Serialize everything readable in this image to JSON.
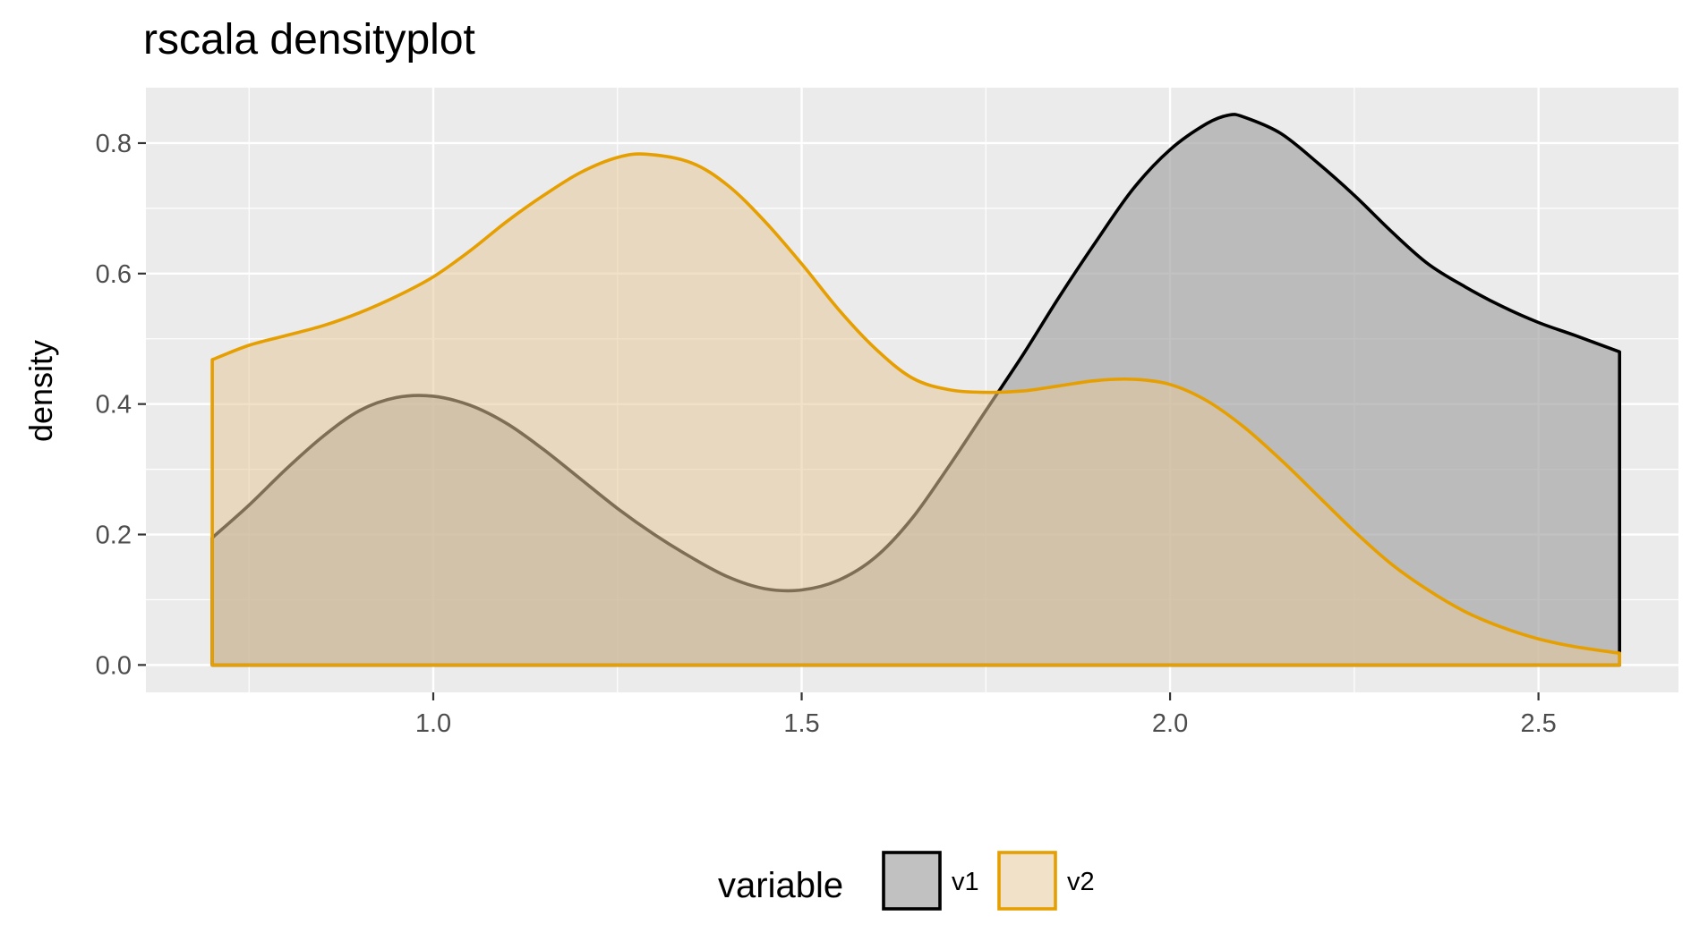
{
  "chart_data": {
    "type": "area",
    "title": "rscala densityplot",
    "xlabel": "",
    "ylabel": "density",
    "xlim": [
      0.61,
      2.69
    ],
    "ylim": [
      -0.042,
      0.885
    ],
    "x_ticks": [
      {
        "value": 1.0,
        "label": "1.0"
      },
      {
        "value": 1.5,
        "label": "1.5"
      },
      {
        "value": 2.0,
        "label": "2.0"
      },
      {
        "value": 2.5,
        "label": "2.5"
      }
    ],
    "y_ticks": [
      {
        "value": 0.0,
        "label": "0.0"
      },
      {
        "value": 0.2,
        "label": "0.2"
      },
      {
        "value": 0.4,
        "label": "0.4"
      },
      {
        "value": 0.6,
        "label": "0.6"
      },
      {
        "value": 0.8,
        "label": "0.8"
      }
    ],
    "grid": true,
    "legend": {
      "title": "variable",
      "position": "bottom"
    },
    "series": [
      {
        "name": "v1",
        "line_color": "#000000",
        "fill_color": "#a6a6a6",
        "fill_opacity": 0.7,
        "x": [
          0.7,
          0.75,
          0.8,
          0.85,
          0.9,
          0.95,
          1.0,
          1.05,
          1.1,
          1.15,
          1.2,
          1.25,
          1.3,
          1.35,
          1.4,
          1.45,
          1.5,
          1.55,
          1.6,
          1.65,
          1.7,
          1.75,
          1.8,
          1.85,
          1.9,
          1.95,
          2.0,
          2.05,
          2.08,
          2.1,
          2.15,
          2.2,
          2.25,
          2.3,
          2.35,
          2.4,
          2.45,
          2.5,
          2.55,
          2.61
        ],
        "y": [
          0.195,
          0.245,
          0.3,
          0.35,
          0.39,
          0.41,
          0.412,
          0.398,
          0.37,
          0.33,
          0.285,
          0.24,
          0.2,
          0.165,
          0.135,
          0.117,
          0.115,
          0.13,
          0.165,
          0.225,
          0.305,
          0.39,
          0.475,
          0.565,
          0.65,
          0.73,
          0.79,
          0.83,
          0.843,
          0.84,
          0.815,
          0.77,
          0.72,
          0.665,
          0.615,
          0.58,
          0.55,
          0.525,
          0.505,
          0.48
        ]
      },
      {
        "name": "v2",
        "line_color": "#e69f00",
        "fill_color": "#e6c89a",
        "fill_opacity": 0.55,
        "x": [
          0.7,
          0.75,
          0.8,
          0.85,
          0.9,
          0.95,
          1.0,
          1.05,
          1.1,
          1.15,
          1.2,
          1.25,
          1.29,
          1.35,
          1.4,
          1.45,
          1.5,
          1.55,
          1.6,
          1.65,
          1.7,
          1.75,
          1.8,
          1.85,
          1.9,
          1.95,
          2.0,
          2.05,
          2.1,
          2.15,
          2.2,
          2.25,
          2.3,
          2.35,
          2.4,
          2.45,
          2.5,
          2.55,
          2.61
        ],
        "y": [
          0.468,
          0.49,
          0.505,
          0.52,
          0.54,
          0.565,
          0.595,
          0.635,
          0.68,
          0.72,
          0.755,
          0.778,
          0.783,
          0.77,
          0.735,
          0.68,
          0.615,
          0.545,
          0.485,
          0.44,
          0.422,
          0.418,
          0.42,
          0.428,
          0.436,
          0.438,
          0.43,
          0.405,
          0.365,
          0.315,
          0.26,
          0.205,
          0.155,
          0.115,
          0.082,
          0.058,
          0.04,
          0.028,
          0.018
        ]
      }
    ]
  }
}
